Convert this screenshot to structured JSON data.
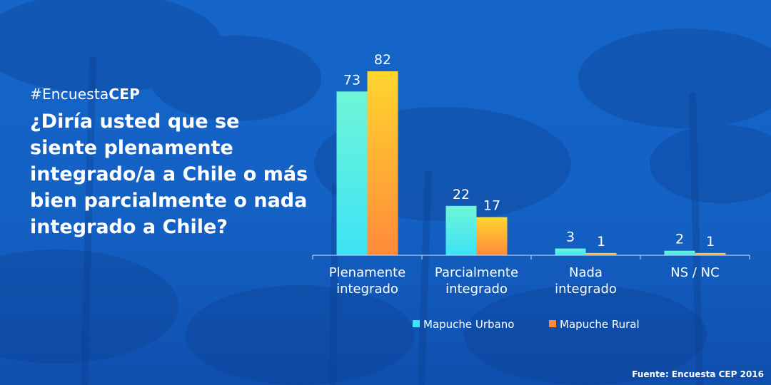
{
  "hashtag": {
    "prefix": "#Encuesta",
    "emphasis": "CEP"
  },
  "question": "¿Diría usted que se siente plenamente integrado/a a Chile o más bien parcialmente o nada integrado a Chile?",
  "source": "Fuente: Encuesta CEP 2016",
  "colors": {
    "urbano_top": "#6ff5d8",
    "urbano_bottom": "#3ce3f5",
    "rural_top": "#ffd62e",
    "rural_bottom": "#ff8a3a",
    "background": "#1565c8"
  },
  "chart_data": {
    "type": "bar",
    "title": "",
    "xlabel": "",
    "ylabel": "",
    "categories": [
      [
        "Plenamente",
        "integrado"
      ],
      [
        "Parcialmente",
        "integrado"
      ],
      [
        "Nada",
        "integrado"
      ],
      [
        "NS / NC"
      ]
    ],
    "series": [
      {
        "name": "Mapuche Urbano",
        "values": [
          73,
          22,
          3,
          2
        ]
      },
      {
        "name": "Mapuche Rural",
        "values": [
          82,
          17,
          1,
          1
        ]
      }
    ],
    "ylim": [
      0,
      82
    ],
    "grid": false,
    "legend_position": "bottom"
  }
}
